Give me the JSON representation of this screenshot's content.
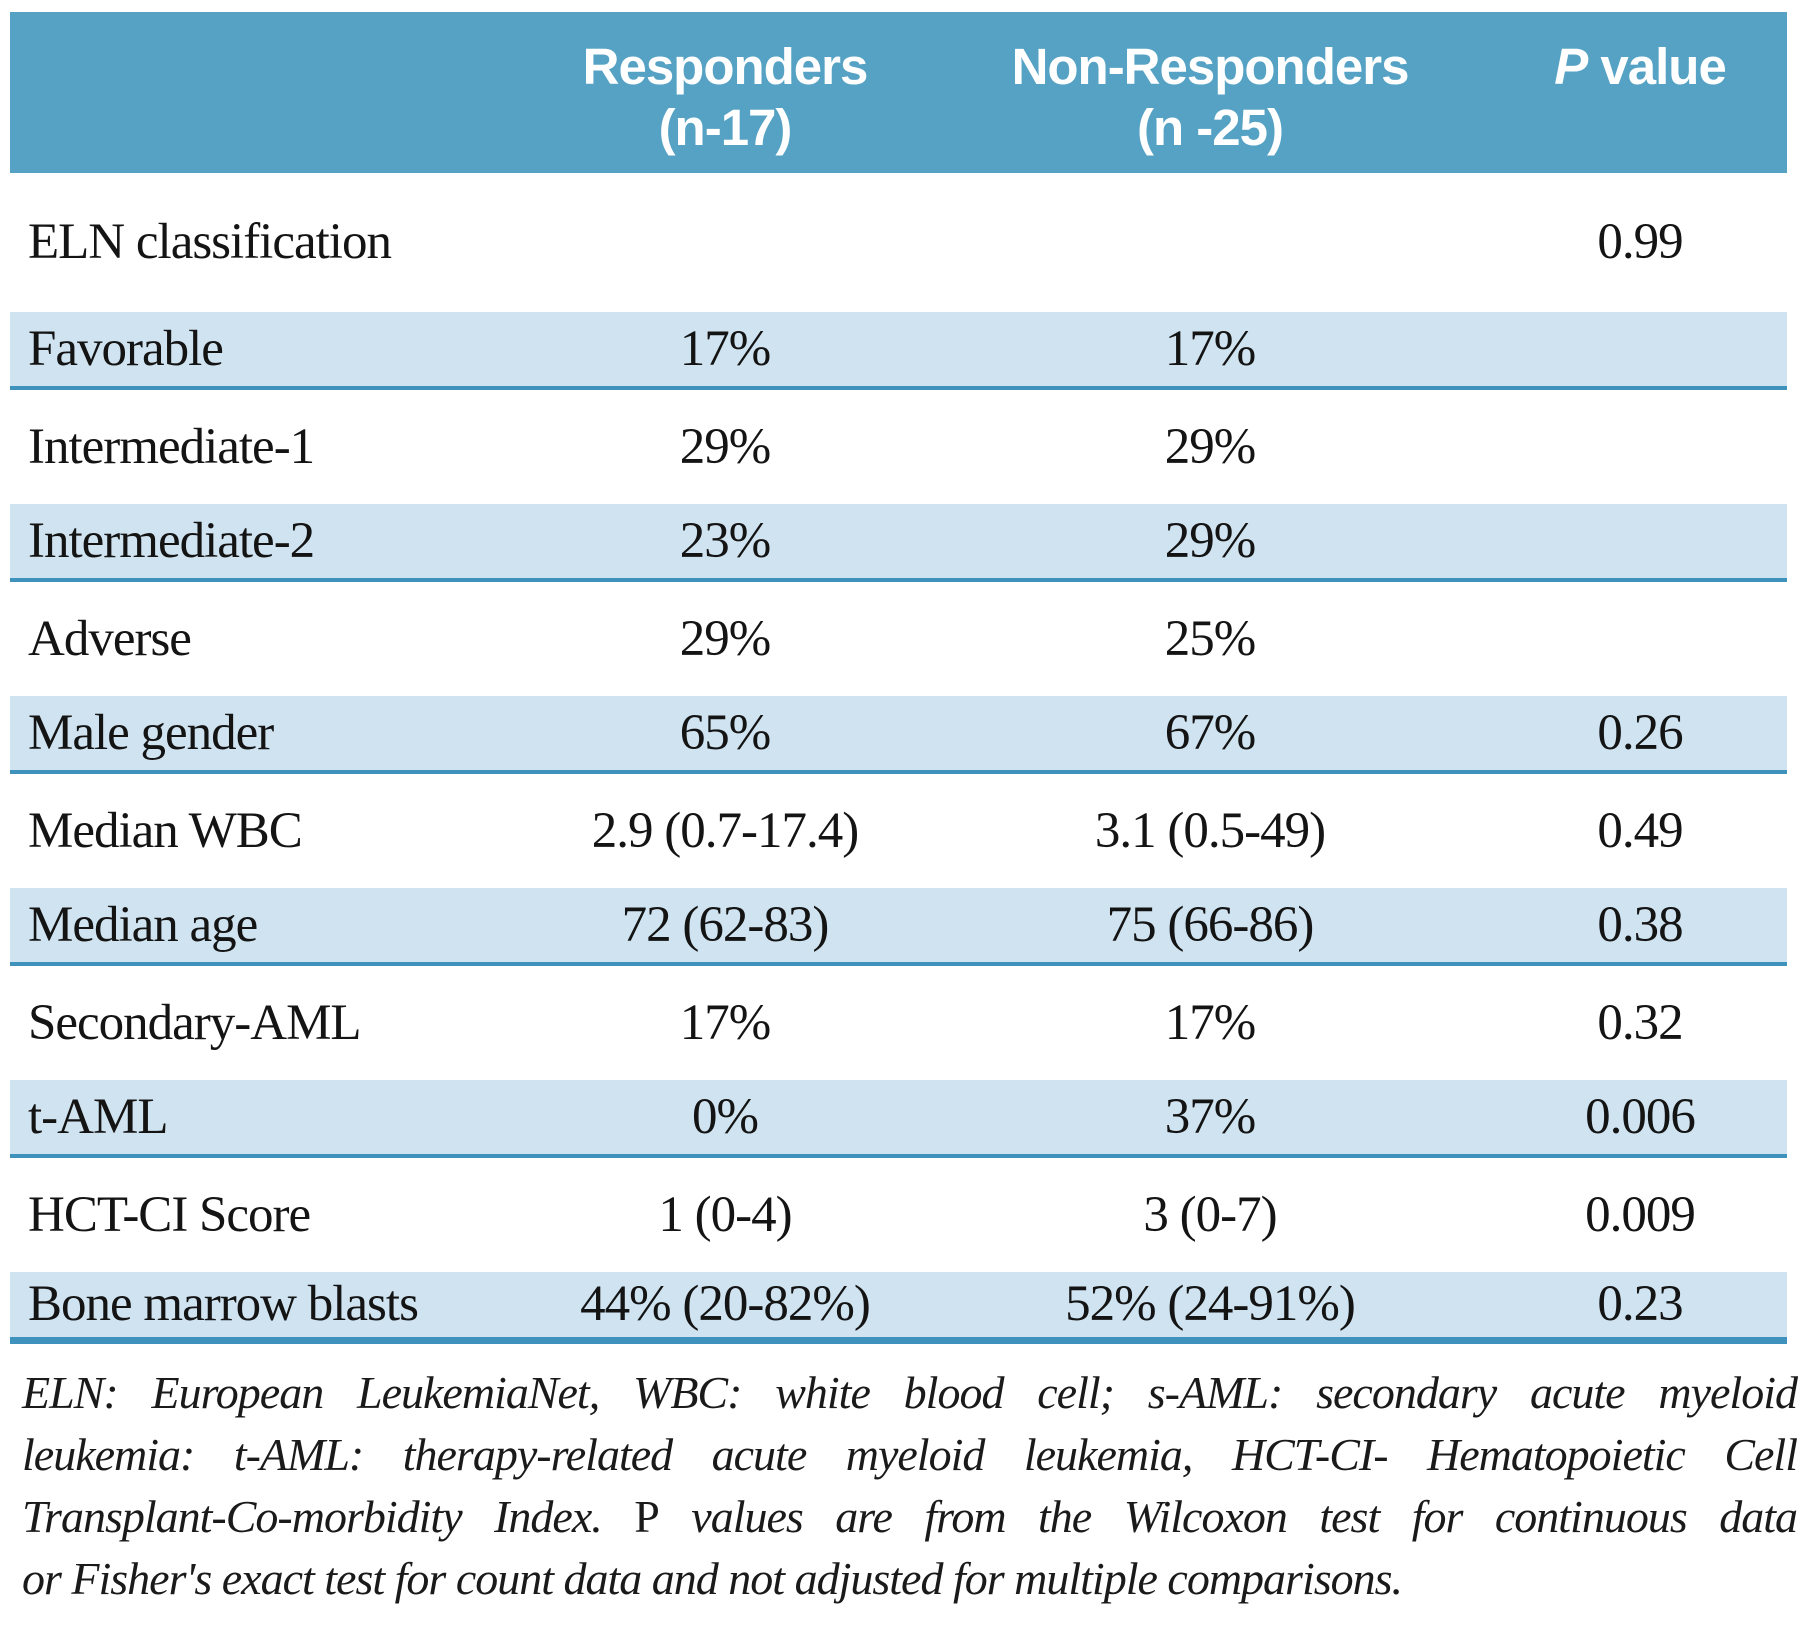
{
  "table": {
    "header": {
      "col1_label": "",
      "col2_line1": "Responders",
      "col2_line2": "(n-17)",
      "col3_line1": "Non-Responders",
      "col3_line2": "(n -25)",
      "p_italic": "P",
      "p_rest": " value"
    },
    "rows": [
      {
        "label": "ELN classification",
        "responders": "",
        "non_responders": "",
        "p_value": "0.99",
        "shaded": false
      },
      {
        "label": "Favorable",
        "responders": "17%",
        "non_responders": "17%",
        "p_value": "",
        "shaded": true
      },
      {
        "label": "Intermediate-1",
        "responders": "29%",
        "non_responders": "29%",
        "p_value": "",
        "shaded": false
      },
      {
        "label": "Intermediate-2",
        "responders": "23%",
        "non_responders": "29%",
        "p_value": "",
        "shaded": true
      },
      {
        "label": "Adverse",
        "responders": "29%",
        "non_responders": "25%",
        "p_value": "",
        "shaded": false
      },
      {
        "label": "Male gender",
        "responders": "65%",
        "non_responders": "67%",
        "p_value": "0.26",
        "shaded": true
      },
      {
        "label": "Median WBC",
        "responders": "2.9 (0.7-17.4)",
        "non_responders": "3.1 (0.5-49)",
        "p_value": "0.49",
        "shaded": false
      },
      {
        "label": "Median age",
        "responders": "72 (62-83)",
        "non_responders": "75 (66-86)",
        "p_value": "0.38",
        "shaded": true
      },
      {
        "label": "Secondary-AML",
        "responders": "17%",
        "non_responders": "17%",
        "p_value": "0.32",
        "shaded": false
      },
      {
        "label": "t-AML",
        "responders": "0%",
        "non_responders": "37%",
        "p_value": "0.006",
        "shaded": true
      },
      {
        "label": "HCT-CI Score",
        "responders": "1 (0-4)",
        "non_responders": "3 (0-7)",
        "p_value": "0.009",
        "shaded": false
      },
      {
        "label": "Bone marrow blasts",
        "responders": "44% (20-82%)",
        "non_responders": "52% (24-91%)",
        "p_value": "0.23",
        "shaded": true
      }
    ]
  },
  "footnote": {
    "line1": "ELN: European LeukemiaNet, WBC: white blood cell; s-AML: secondary acute myeloid",
    "line2": "leukemia: t-AML: therapy-related acute myeloid leukemia, HCT-CI- Hematopoietic Cell",
    "line3_pre": "Transplant-Co-morbidity Index. ",
    "line3_roman": "P",
    "line3_post": " values are from the Wilcoxon test for continuous data",
    "line4": "or Fisher's exact test for count data and not adjusted for multiple comparisons."
  },
  "colors": {
    "header_bg": "#55a2c4",
    "header_text": "#ffffff",
    "row_shaded_bg": "#cfe3f0",
    "row_border": "#3e92bc"
  }
}
